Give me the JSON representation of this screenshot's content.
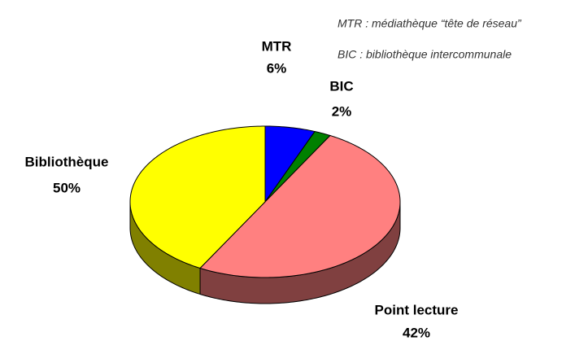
{
  "chart_data": {
    "type": "pie",
    "annotations": [
      "MTR : médiathèque “tête de réseau”",
      "BIC : bibliothèque intercommunale"
    ],
    "categories": [
      "MTR",
      "BIC",
      "Bibliothèque",
      "Point lecture"
    ],
    "values": [
      6,
      2,
      50,
      42
    ],
    "value_labels": [
      "6%",
      "2%",
      "50%",
      "42%"
    ],
    "colors": [
      "#0000ff",
      "#008000",
      "#ff8080",
      "#ffff00"
    ],
    "side_colors": [
      "#000080",
      "#004000",
      "#804040",
      "#808000"
    ]
  }
}
